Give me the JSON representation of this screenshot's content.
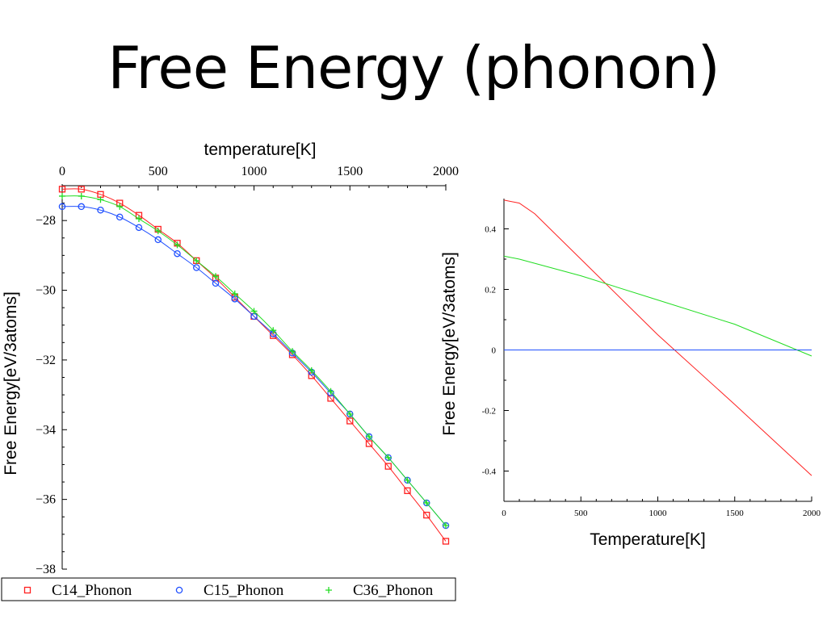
{
  "slide": {
    "title": "Free Energy (phonon)"
  },
  "colors": {
    "c14": "#ff2020",
    "c15": "#2050ff",
    "c36": "#22dd22"
  },
  "chart_data": [
    {
      "type": "line",
      "title": "",
      "xlabel": "temperature[K]",
      "ylabel": "Free Energy[eV/3atoms]",
      "xlim": [
        0,
        2000
      ],
      "ylim": [
        -38,
        -27
      ],
      "xticks": [
        0,
        500,
        1000,
        1500,
        2000
      ],
      "yticks": [
        -28,
        -30,
        -32,
        -34,
        -36,
        -38
      ],
      "xtick_labels": [
        "0",
        "500",
        "1000",
        "1500",
        "2000"
      ],
      "ytick_labels": [
        "−28",
        "−30",
        "−32",
        "−34",
        "−36",
        "−38"
      ],
      "x_axis_position": "top",
      "grid": false,
      "legend_position": "bottom",
      "x": [
        0,
        100,
        200,
        300,
        400,
        500,
        600,
        700,
        800,
        900,
        1000,
        1100,
        1200,
        1300,
        1400,
        1500,
        1600,
        1700,
        1800,
        1900,
        2000
      ],
      "series": [
        {
          "name": "C14_Phonon",
          "color": "#ff2020",
          "marker": "square",
          "values": [
            -27.1,
            -27.1,
            -27.25,
            -27.5,
            -27.85,
            -28.25,
            -28.65,
            -29.15,
            -29.65,
            -30.2,
            -30.75,
            -31.3,
            -31.85,
            -32.45,
            -33.1,
            -33.75,
            -34.4,
            -35.05,
            -35.75,
            -36.45,
            -37.2
          ]
        },
        {
          "name": "C15_Phonon",
          "color": "#2050ff",
          "marker": "circle",
          "values": [
            -27.6,
            -27.6,
            -27.7,
            -27.9,
            -28.2,
            -28.55,
            -28.95,
            -29.35,
            -29.8,
            -30.25,
            -30.75,
            -31.25,
            -31.8,
            -32.35,
            -32.95,
            -33.55,
            -34.2,
            -34.8,
            -35.45,
            -36.1,
            -36.75
          ]
        },
        {
          "name": "C36_Phonon",
          "color": "#22dd22",
          "marker": "plus",
          "values": [
            -27.3,
            -27.3,
            -27.4,
            -27.6,
            -27.95,
            -28.3,
            -28.7,
            -29.15,
            -29.6,
            -30.1,
            -30.6,
            -31.15,
            -31.75,
            -32.3,
            -32.9,
            -33.55,
            -34.2,
            -34.8,
            -35.45,
            -36.1,
            -36.75
          ]
        }
      ]
    },
    {
      "type": "line",
      "title": "",
      "xlabel": "Temperature[K]",
      "ylabel": "Free Energy[eV/3atoms]",
      "xlim": [
        0,
        2000
      ],
      "ylim": [
        -0.5,
        0.5
      ],
      "xticks": [
        0,
        500,
        1000,
        1500,
        2000
      ],
      "yticks": [
        0.4,
        0.2,
        0,
        -0.2,
        -0.4
      ],
      "xtick_labels": [
        "0",
        "500",
        "1000",
        "1500",
        "2000"
      ],
      "ytick_labels": [
        "0.4",
        "0.2",
        "0",
        "-0.2",
        "-0.4"
      ],
      "grid": false,
      "series": [
        {
          "color": "#ff2020",
          "x": [
            0,
            100,
            200,
            500,
            1000,
            1500,
            2000
          ],
          "values": [
            0.495,
            0.485,
            0.45,
            0.3,
            0.05,
            -0.18,
            -0.415
          ]
        },
        {
          "color": "#22dd22",
          "x": [
            0,
            100,
            500,
            1000,
            1500,
            2000
          ],
          "values": [
            0.31,
            0.3,
            0.245,
            0.165,
            0.085,
            -0.02
          ]
        },
        {
          "color": "#2050ff",
          "x": [
            0,
            2000
          ],
          "values": [
            0,
            0
          ]
        }
      ]
    }
  ]
}
